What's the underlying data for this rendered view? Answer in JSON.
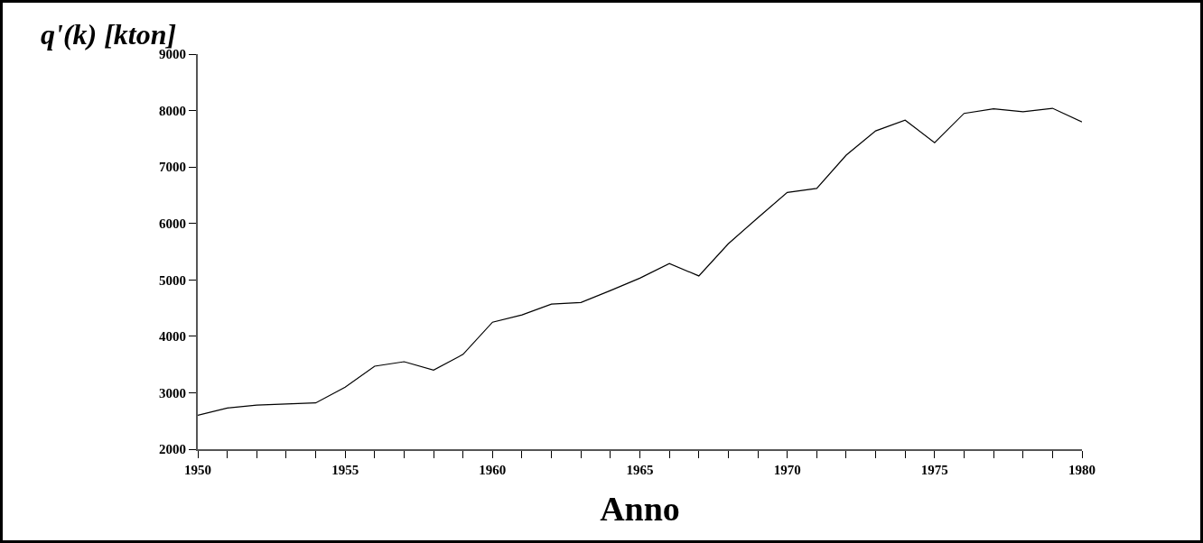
{
  "chart_data": {
    "type": "line",
    "ylabel": "q'(k) [kton]",
    "xlabel": "Anno",
    "x": [
      1950,
      1951,
      1952,
      1953,
      1954,
      1955,
      1956,
      1957,
      1958,
      1959,
      1960,
      1961,
      1962,
      1963,
      1964,
      1965,
      1966,
      1967,
      1968,
      1969,
      1970,
      1971,
      1972,
      1973,
      1974,
      1975,
      1976,
      1977,
      1978,
      1979,
      1980
    ],
    "series": [
      {
        "color": "#000000",
        "values": [
          2600,
          2730,
          2780,
          2800,
          2820,
          3100,
          3470,
          3550,
          3400,
          3680,
          4250,
          4380,
          4570,
          4600,
          4810,
          5030,
          5290,
          5070,
          5640,
          6100,
          6550,
          6620,
          7210,
          7640,
          7830,
          7430,
          7950,
          8030,
          7980,
          8040,
          7800
        ]
      }
    ],
    "xlim": [
      1950,
      1980
    ],
    "xticks": [
      1950,
      {
        "value": 1951,
        "label": null
      },
      {
        "value": 1952,
        "label": null
      },
      {
        "value": 1953,
        "label": null
      },
      {
        "value": 1954,
        "label": null
      },
      1955,
      {
        "value": 1956,
        "label": null
      },
      {
        "value": 1957,
        "label": null
      },
      {
        "value": 1958,
        "label": null
      },
      {
        "value": 1959,
        "label": null
      },
      1960,
      {
        "value": 1961,
        "label": null
      },
      {
        "value": 1962,
        "label": null
      },
      {
        "value": 1963,
        "label": null
      },
      {
        "value": 1964,
        "label": null
      },
      1965,
      {
        "value": 1966,
        "label": null
      },
      {
        "value": 1967,
        "label": null
      },
      {
        "value": 1968,
        "label": null
      },
      {
        "value": 1969,
        "label": null
      },
      1970,
      {
        "value": 1971,
        "label": null
      },
      {
        "value": 1972,
        "label": null
      },
      {
        "value": 1973,
        "label": null
      },
      {
        "value": 1974,
        "label": null
      },
      1975,
      {
        "value": 1976,
        "label": null
      },
      {
        "value": 1977,
        "label": null
      },
      {
        "value": 1978,
        "label": null
      },
      {
        "value": 1979,
        "label": null
      },
      1980
    ],
    "ylim": [
      2000,
      9000
    ],
    "yticks": [
      2000,
      3000,
      4000,
      5000,
      6000,
      7000,
      8000,
      9000
    ],
    "grid": false,
    "marker": "none",
    "line_style": "solid"
  }
}
